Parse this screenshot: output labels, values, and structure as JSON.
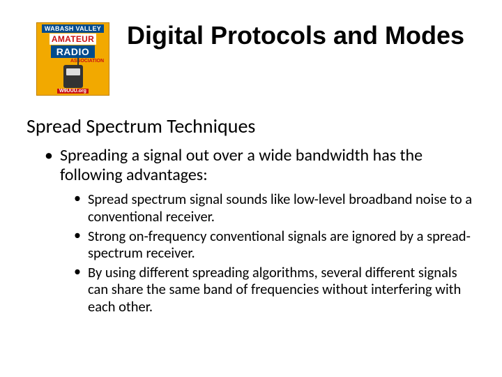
{
  "logo": {
    "line1": "WABASH VALLEY",
    "line2": "AMATEUR",
    "line3": "RADIO",
    "assoc": "ASSOCIATION",
    "callsign": "W9UUU.org",
    "bg_color": "#f2a900",
    "banner_bg": "#004b8d",
    "banner_fg": "#ffffff",
    "mid_bg": "#ffffff",
    "mid_fg": "#c91010"
  },
  "title": "Digital Protocols and Modes",
  "heading": "Spread Spectrum Techniques",
  "bullet_main": "Spreading a signal out over a wide bandwidth has the following advantages:",
  "sub_bullets": [
    "Spread spectrum signal sounds like low-level broadband noise to a conventional receiver.",
    "Strong on-frequency conventional signals are ignored by a spread-spectrum receiver.",
    "By using different spreading algorithms, several different signals can share the same band of frequencies without interfering with each other."
  ],
  "style": {
    "slide_bg": "#ffffff",
    "text_color": "#000000",
    "title_font": "Arial",
    "title_size_pt": 36,
    "title_weight": 700,
    "body_font": "Calibri",
    "h2_size_pt": 28,
    "lvl1_size_pt": 24,
    "lvl2_size_pt": 20.5,
    "bullet_glyph": "•"
  }
}
